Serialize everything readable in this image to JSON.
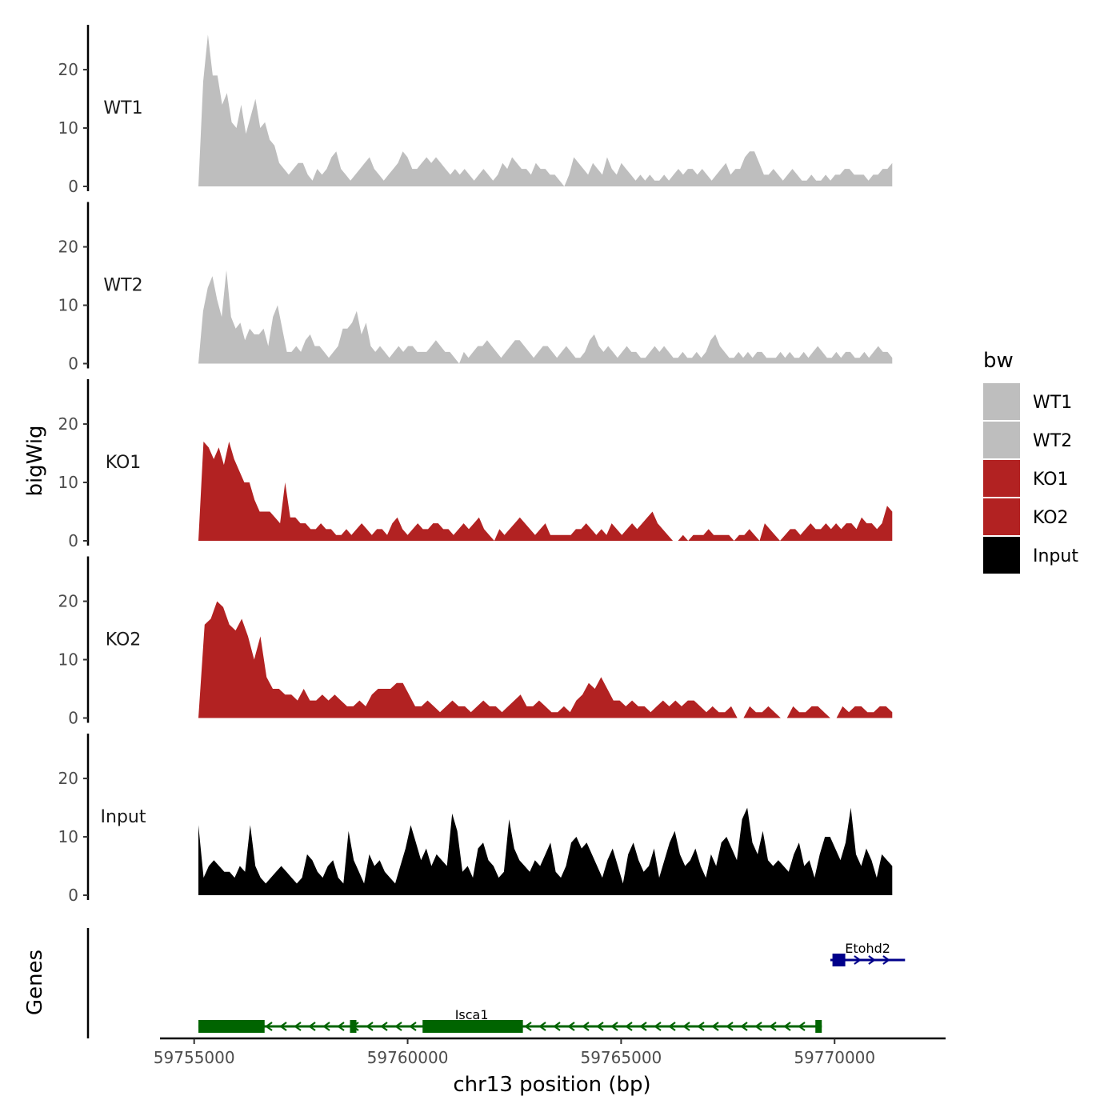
{
  "chart_data": {
    "type": "area",
    "chromosome": "chr13",
    "xlabel": "chr13 position (bp)",
    "ylabel": "bigWig",
    "genes_label": "Genes",
    "xlim": [
      59754200,
      59772600
    ],
    "x_ticks": [
      59755000,
      59760000,
      59765000,
      59770000
    ],
    "x_tick_labels": [
      "59755000",
      "59760000",
      "59765000",
      "59770000"
    ],
    "ylim": [
      0,
      27
    ],
    "y_ticks": [
      0,
      10,
      20
    ],
    "y_tick_labels": [
      "0",
      "10",
      "20"
    ],
    "x_range": [
      59755100,
      59771350
    ],
    "legend": {
      "title": "bw",
      "entries": [
        {
          "label": "WT1",
          "color": "#bebebe"
        },
        {
          "label": "WT2",
          "color": "#bebebe"
        },
        {
          "label": "KO1",
          "color": "#b22222"
        },
        {
          "label": "KO2",
          "color": "#b22222"
        },
        {
          "label": "Input",
          "color": "#000000"
        }
      ]
    },
    "series": [
      {
        "name": "WT1",
        "color": "#bebebe",
        "values": [
          0,
          18,
          26,
          19,
          19,
          14,
          16,
          11,
          10,
          14,
          9,
          12,
          15,
          10,
          11,
          8,
          7,
          4,
          3,
          2,
          3,
          4,
          4,
          2,
          1,
          3,
          2,
          3,
          5,
          6,
          3,
          2,
          1,
          2,
          3,
          4,
          5,
          3,
          2,
          1,
          2,
          3,
          4,
          6,
          5,
          3,
          3,
          4,
          5,
          4,
          5,
          4,
          3,
          2,
          3,
          2,
          3,
          2,
          1,
          2,
          3,
          2,
          1,
          2,
          4,
          3,
          5,
          4,
          3,
          3,
          2,
          4,
          3,
          3,
          2,
          2,
          1,
          0,
          2,
          5,
          4,
          3,
          2,
          4,
          3,
          2,
          5,
          3,
          2,
          4,
          3,
          2,
          1,
          2,
          1,
          2,
          1,
          1,
          2,
          1,
          2,
          3,
          2,
          3,
          3,
          2,
          3,
          2,
          1,
          2,
          3,
          4,
          2,
          3,
          3,
          5,
          6,
          6,
          4,
          2,
          2,
          3,
          2,
          1,
          2,
          3,
          2,
          1,
          1,
          2,
          1,
          1,
          2,
          1,
          2,
          2,
          3,
          3,
          2,
          2,
          2,
          1,
          2,
          2,
          3,
          3,
          4
        ]
      },
      {
        "name": "WT2",
        "color": "#bebebe",
        "values": [
          0,
          9,
          13,
          15,
          11,
          8,
          16,
          8,
          6,
          7,
          4,
          6,
          5,
          5,
          6,
          3,
          8,
          10,
          6,
          2,
          2,
          3,
          2,
          4,
          5,
          3,
          3,
          2,
          1,
          2,
          3,
          6,
          6,
          7,
          9,
          5,
          7,
          3,
          2,
          3,
          2,
          1,
          2,
          3,
          2,
          3,
          3,
          2,
          2,
          2,
          3,
          4,
          3,
          2,
          2,
          1,
          0,
          2,
          1,
          2,
          3,
          3,
          4,
          3,
          2,
          1,
          2,
          3,
          4,
          4,
          3,
          2,
          1,
          2,
          3,
          3,
          2,
          1,
          2,
          3,
          2,
          1,
          1,
          2,
          4,
          5,
          3,
          2,
          3,
          2,
          1,
          2,
          3,
          2,
          2,
          1,
          1,
          2,
          3,
          2,
          3,
          2,
          1,
          1,
          2,
          1,
          1,
          2,
          1,
          2,
          4,
          5,
          3,
          2,
          1,
          1,
          2,
          1,
          2,
          1,
          2,
          2,
          1,
          1,
          1,
          2,
          1,
          2,
          1,
          1,
          2,
          1,
          2,
          3,
          2,
          1,
          1,
          2,
          1,
          2,
          2,
          1,
          1,
          2,
          1,
          2,
          3,
          2,
          2,
          1
        ]
      },
      {
        "name": "KO1",
        "color": "#b22222",
        "values": [
          0,
          17,
          16,
          14,
          16,
          13,
          17,
          14,
          12,
          10,
          10,
          7,
          5,
          5,
          5,
          4,
          3,
          10,
          4,
          4,
          3,
          3,
          2,
          2,
          3,
          2,
          2,
          1,
          1,
          2,
          1,
          2,
          3,
          2,
          1,
          2,
          2,
          1,
          3,
          4,
          2,
          1,
          2,
          3,
          2,
          2,
          3,
          3,
          2,
          2,
          1,
          2,
          3,
          2,
          3,
          4,
          2,
          1,
          0,
          2,
          1,
          2,
          3,
          4,
          3,
          2,
          1,
          2,
          3,
          1,
          1,
          1,
          1,
          1,
          2,
          2,
          3,
          2,
          1,
          2,
          1,
          3,
          2,
          1,
          2,
          3,
          2,
          3,
          4,
          5,
          3,
          2,
          1,
          0,
          0,
          1,
          0,
          1,
          1,
          1,
          2,
          1,
          1,
          1,
          1,
          0,
          1,
          1,
          2,
          1,
          0,
          3,
          2,
          1,
          0,
          1,
          2,
          2,
          1,
          2,
          3,
          2,
          2,
          3,
          2,
          3,
          2,
          3,
          3,
          2,
          4,
          3,
          3,
          2,
          3,
          6,
          5
        ]
      },
      {
        "name": "KO2",
        "color": "#b22222",
        "values": [
          0,
          16,
          17,
          20,
          19,
          16,
          15,
          17,
          14,
          10,
          14,
          7,
          5,
          5,
          4,
          4,
          3,
          5,
          3,
          3,
          4,
          3,
          4,
          3,
          2,
          2,
          3,
          2,
          4,
          5,
          5,
          5,
          6,
          6,
          4,
          2,
          2,
          3,
          2,
          1,
          2,
          3,
          2,
          2,
          1,
          2,
          3,
          2,
          2,
          1,
          2,
          3,
          4,
          2,
          2,
          3,
          2,
          1,
          1,
          2,
          1,
          3,
          4,
          6,
          5,
          7,
          5,
          3,
          3,
          2,
          3,
          2,
          2,
          1,
          2,
          3,
          2,
          3,
          2,
          3,
          3,
          2,
          1,
          2,
          1,
          1,
          2,
          0,
          0,
          2,
          1,
          1,
          2,
          1,
          0,
          0,
          2,
          1,
          1,
          2,
          2,
          1,
          0,
          0,
          2,
          1,
          2,
          2,
          1,
          1,
          2,
          2,
          1
        ]
      },
      {
        "name": "Input",
        "color": "#000000",
        "values": [
          12,
          3,
          5,
          6,
          5,
          4,
          4,
          3,
          5,
          4,
          12,
          5,
          3,
          2,
          3,
          4,
          5,
          4,
          3,
          2,
          3,
          7,
          6,
          4,
          3,
          5,
          6,
          3,
          2,
          11,
          6,
          4,
          2,
          7,
          5,
          6,
          4,
          3,
          2,
          5,
          8,
          12,
          9,
          6,
          8,
          5,
          7,
          6,
          5,
          14,
          11,
          4,
          5,
          3,
          8,
          9,
          6,
          5,
          3,
          4,
          13,
          8,
          6,
          5,
          4,
          6,
          5,
          7,
          9,
          4,
          3,
          5,
          9,
          10,
          8,
          9,
          7,
          5,
          3,
          6,
          8,
          5,
          2,
          7,
          9,
          6,
          4,
          5,
          8,
          3,
          6,
          9,
          11,
          7,
          5,
          6,
          8,
          5,
          3,
          7,
          5,
          9,
          10,
          8,
          6,
          13,
          15,
          9,
          7,
          11,
          6,
          5,
          6,
          5,
          4,
          7,
          9,
          5,
          6,
          3,
          7,
          10,
          10,
          8,
          6,
          9,
          15,
          7,
          5,
          8,
          6,
          3,
          7,
          6,
          5
        ]
      }
    ],
    "genes": [
      {
        "name": "Isca1",
        "strand": "-",
        "color": "#006400",
        "start": 59755100,
        "end": 59769700,
        "exons": [
          [
            59755100,
            59756650
          ],
          [
            59758650,
            59758800
          ],
          [
            59760350,
            59762700
          ],
          [
            59769550,
            59769700
          ]
        ]
      },
      {
        "name": "Etohd2",
        "strand": "+",
        "color": "#00008b",
        "start": 59769900,
        "end": 59771650,
        "exons": [
          [
            59769950,
            59770250
          ]
        ]
      }
    ]
  }
}
